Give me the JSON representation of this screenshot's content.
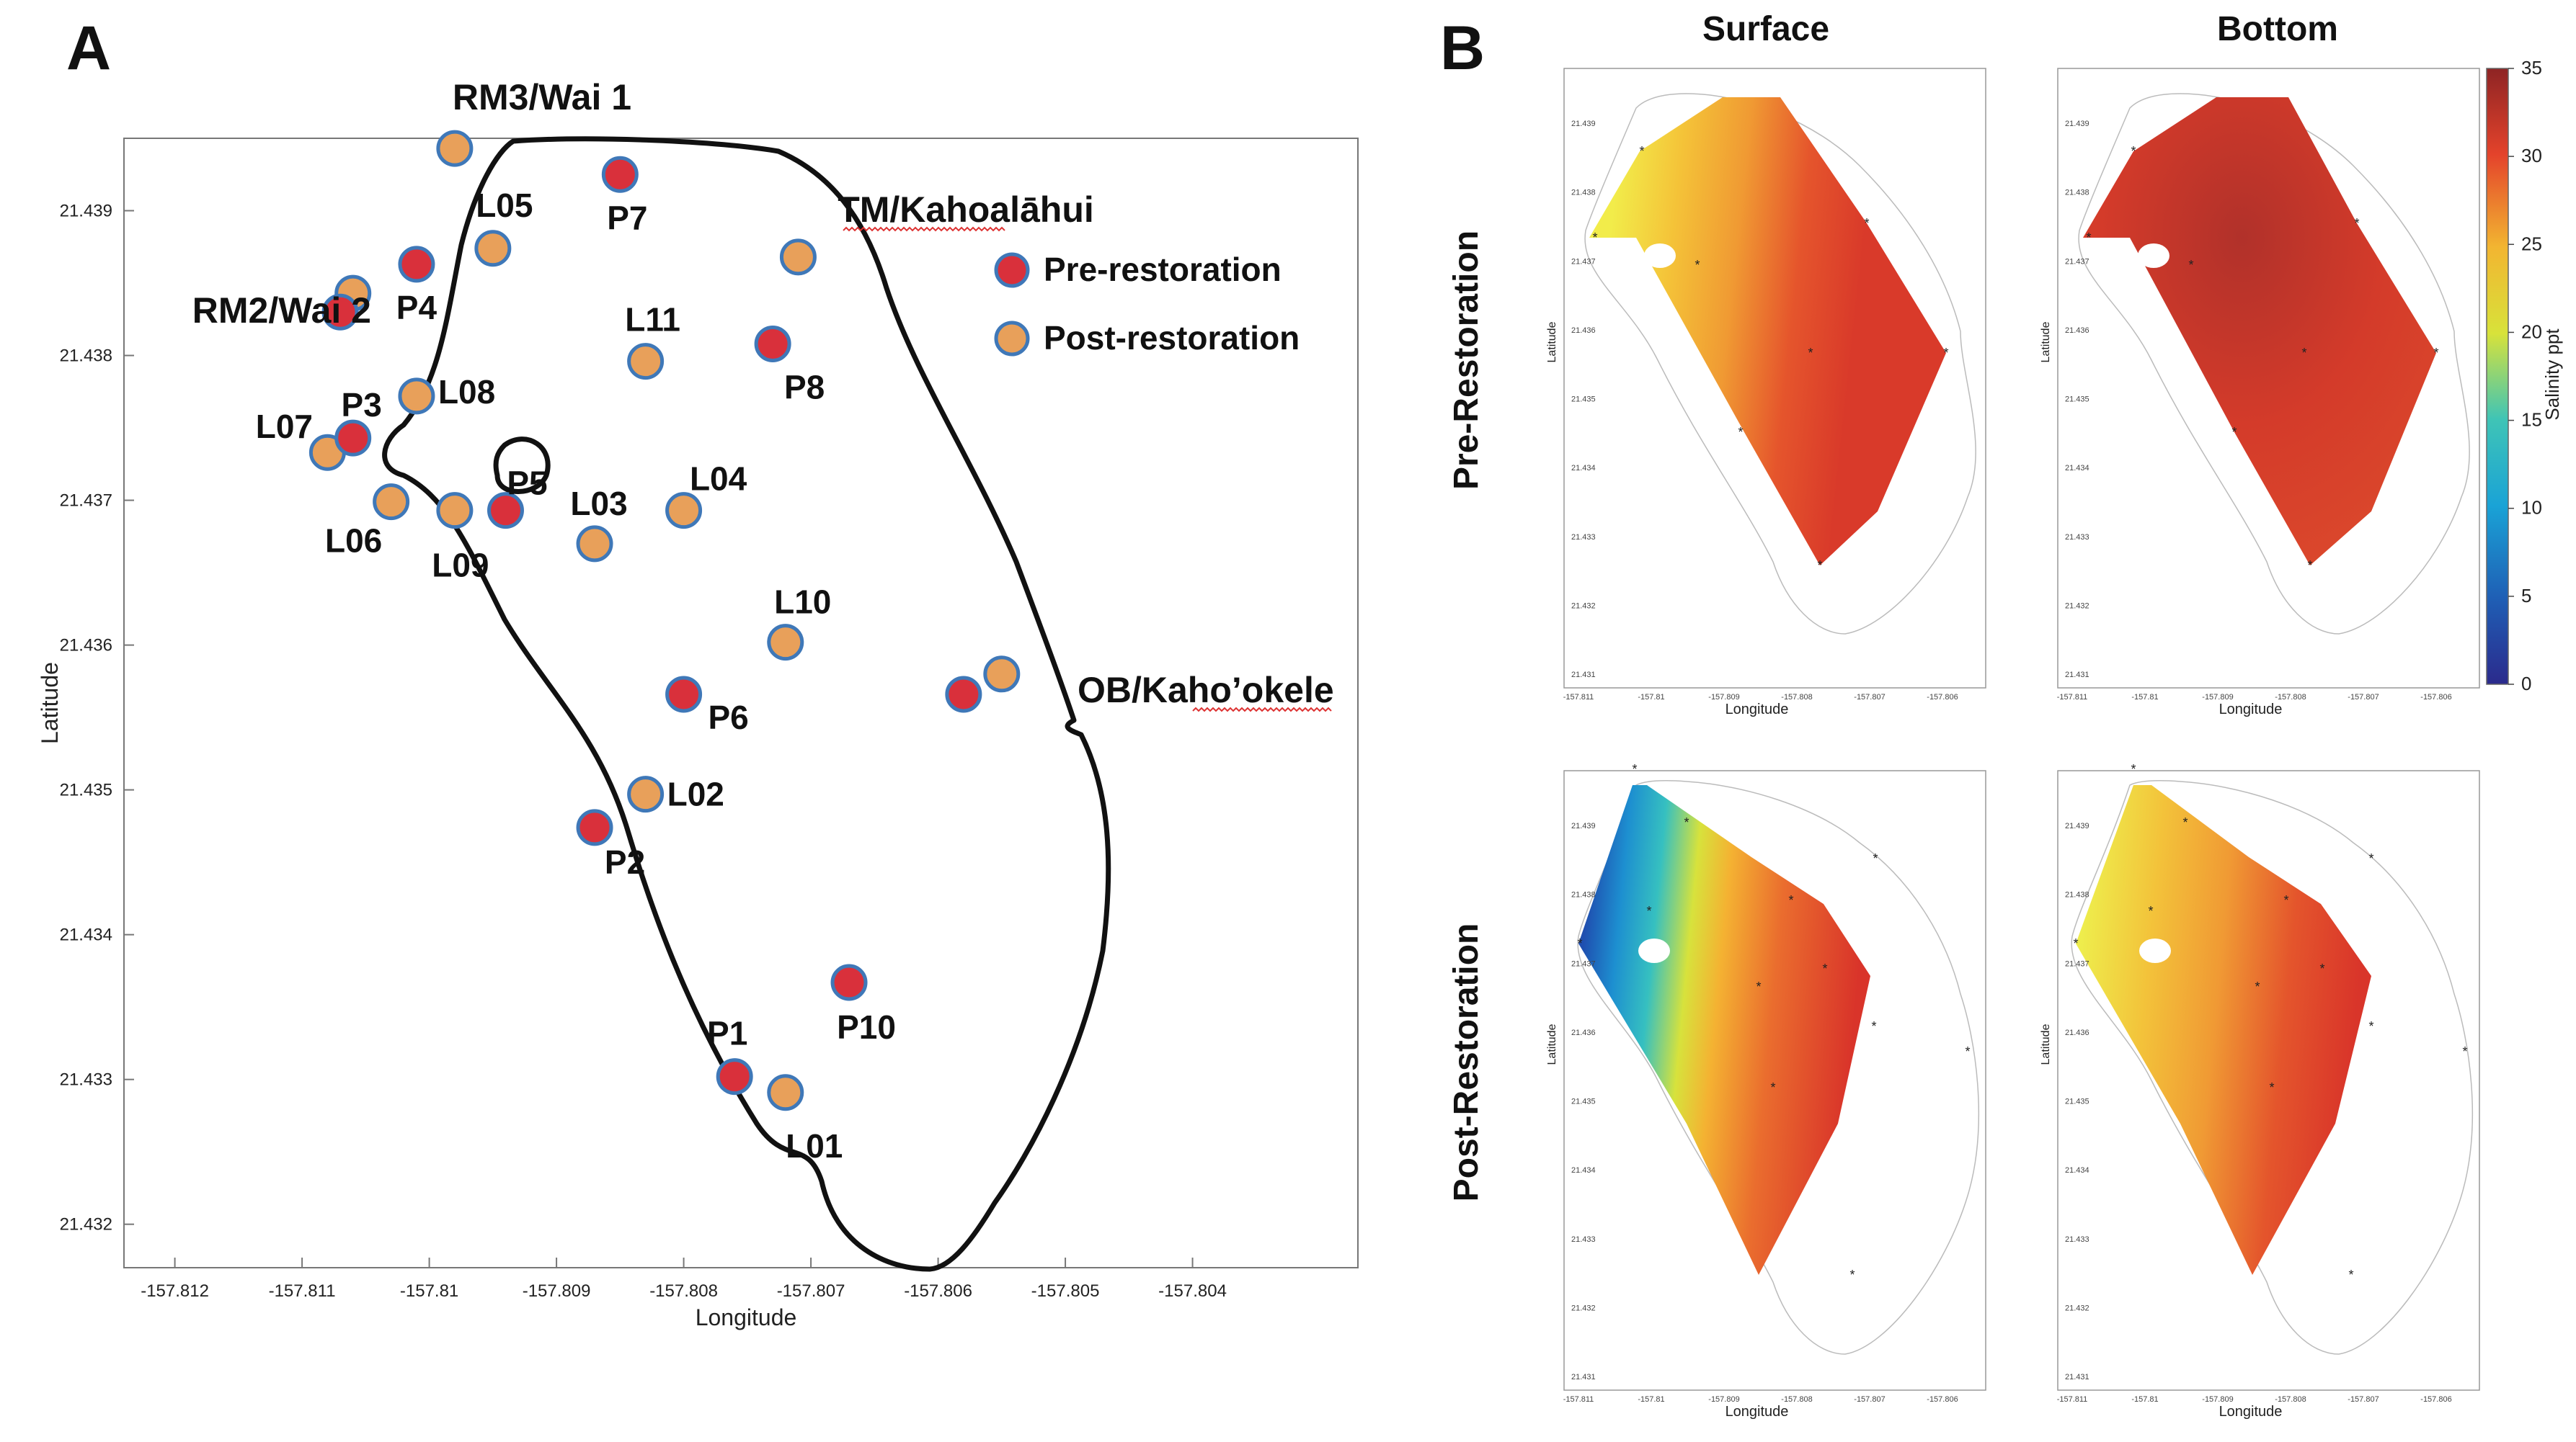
{
  "chart_data": [
    {
      "panel": "A",
      "type": "scatter",
      "xlabel": "Longitude",
      "ylabel": "Latitude",
      "xlim": [
        -157.8124,
        -157.8027
      ],
      "ylim": [
        21.4317,
        21.4395
      ],
      "x_ticks": [
        -157.812,
        -157.811,
        -157.81,
        -157.809,
        -157.808,
        -157.807,
        -157.806,
        -157.805,
        -157.804
      ],
      "x_tick_labels": [
        "-157.812",
        "-157.811",
        "-157.81",
        "-157.809",
        "-157.808",
        "-157.807",
        "-157.806",
        "-157.805",
        "-157.804"
      ],
      "y_ticks": [
        21.439,
        21.438,
        21.437,
        21.436,
        21.435,
        21.434,
        21.433,
        21.432
      ],
      "y_tick_labels": [
        "21.439",
        "21.438",
        "21.437",
        "21.436",
        "21.435",
        "21.434",
        "21.433",
        "21.432"
      ],
      "legend": {
        "position": "top-right",
        "entries": [
          {
            "label": "Pre-restoration",
            "color": "#d9303b"
          },
          {
            "label": "Post-restoration",
            "color": "#e8a05a"
          }
        ]
      },
      "outlet_labels": [
        "RM3/Wai 1",
        "TM/Kahoalāhui",
        "RM2/Wai 2",
        "OB/Kaho’okele"
      ],
      "series": [
        {
          "name": "Pre-restoration",
          "points": [
            {
              "label": "P1",
              "lon": -157.8076,
              "lat": 21.43302
            },
            {
              "label": "P2",
              "lon": -157.8087,
              "lat": 21.43474
            },
            {
              "label": "P3",
              "lon": -157.8106,
              "lat": 21.43743
            },
            {
              "label": "P4",
              "lon": -157.8101,
              "lat": 21.43863
            },
            {
              "label": "P5",
              "lon": -157.8094,
              "lat": 21.43693
            },
            {
              "label": "P6",
              "lon": -157.808,
              "lat": 21.43566
            },
            {
              "label": "P7",
              "lon": -157.8085,
              "lat": 21.43925
            },
            {
              "label": "P8",
              "lon": -157.8073,
              "lat": 21.43808
            },
            {
              "label": "P10",
              "lon": -157.8067,
              "lat": 21.43367
            },
            {
              "label": "RM2/Wai 2",
              "lon": -157.8107,
              "lat": 21.4383
            },
            {
              "label": "OB/Kaho’okele",
              "lon": -157.8058,
              "lat": 21.43566
            }
          ]
        },
        {
          "name": "Post-restoration",
          "points": [
            {
              "label": "L01",
              "lon": -157.8072,
              "lat": 21.43291
            },
            {
              "label": "L02",
              "lon": -157.8083,
              "lat": 21.43497
            },
            {
              "label": "L03",
              "lon": -157.8087,
              "lat": 21.4367
            },
            {
              "label": "L04",
              "lon": -157.808,
              "lat": 21.43693
            },
            {
              "label": "L05",
              "lon": -157.8095,
              "lat": 21.43874
            },
            {
              "label": "L06",
              "lon": -157.8103,
              "lat": 21.43699
            },
            {
              "label": "L07",
              "lon": -157.8108,
              "lat": 21.43733
            },
            {
              "label": "L08",
              "lon": -157.8101,
              "lat": 21.43772
            },
            {
              "label": "L09",
              "lon": -157.8098,
              "lat": 21.43693
            },
            {
              "label": "L10",
              "lon": -157.8072,
              "lat": 21.43602
            },
            {
              "label": "L11",
              "lon": -157.8083,
              "lat": 21.43796
            },
            {
              "label": "RM3/Wai 1",
              "lon": -157.8098,
              "lat": 21.43943
            },
            {
              "label": "TM/Kahoalāhui",
              "lon": -157.8071,
              "lat": 21.43868
            },
            {
              "label": "RM2/Wai 2",
              "lon": -157.8106,
              "lat": 21.43843
            },
            {
              "label": "OB/Kaho’okele",
              "lon": -157.8055,
              "lat": 21.4358
            }
          ]
        }
      ]
    },
    {
      "panel": "B",
      "type": "heatmap",
      "column_titles": [
        "Surface",
        "Bottom"
      ],
      "row_titles": [
        "Pre-Restoration",
        "Post-Restoration"
      ],
      "xlabel": "Longitude",
      "ylabel": "Latitude",
      "colorbar": {
        "label": "Salinity ppt",
        "range": [
          0,
          35
        ],
        "ticks": [
          0,
          5,
          10,
          15,
          20,
          25,
          30,
          35
        ],
        "tick_labels": [
          "0",
          "5",
          "10",
          "15",
          "20",
          "25",
          "30",
          "35"
        ]
      },
      "maps": [
        {
          "row": "Pre-Restoration",
          "column": "Surface",
          "min_salinity": 20,
          "max_salinity": 31
        },
        {
          "row": "Pre-Restoration",
          "column": "Bottom",
          "min_salinity": 27,
          "max_salinity": 34
        },
        {
          "row": "Post-Restoration",
          "column": "Surface",
          "min_salinity": 6,
          "max_salinity": 31
        },
        {
          "row": "Post-Restoration",
          "column": "Bottom",
          "min_salinity": 20,
          "max_salinity": 31
        }
      ],
      "x_tick_labels": [
        "-157.811",
        "-157.81",
        "-157.809",
        "-157.808",
        "-157.807",
        "-157.806"
      ],
      "y_tick_labels": [
        "21.439",
        "21.438",
        "21.437",
        "21.436",
        "21.435",
        "21.434",
        "21.433",
        "21.432",
        "21.431"
      ]
    }
  ],
  "labels": {
    "panel_a": "A",
    "panel_b": "B"
  }
}
